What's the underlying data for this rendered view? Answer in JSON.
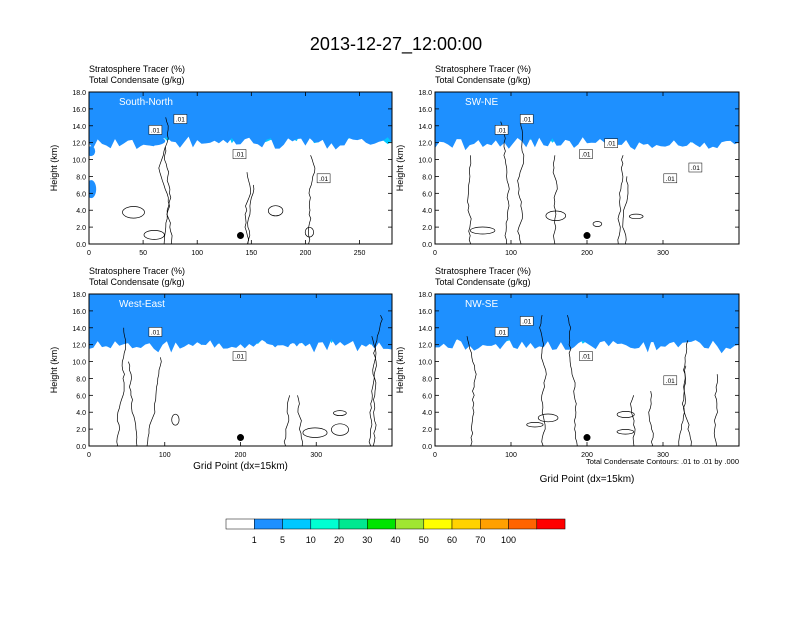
{
  "figure_title": "2013-12-27_12:00:00",
  "field_label": "Stratosphere Tracer",
  "field_units": "(%)",
  "contour_label": "Total Condensate",
  "contour_units": "(g/kg)",
  "contour_note": "Total Condensate Contours: .01 to .01 by .000",
  "colorbar": {
    "colors": [
      "#ffffff",
      "#1e90ff",
      "#00c8ff",
      "#00ffd2",
      "#00e890",
      "#00e400",
      "#a0e632",
      "#ffff00",
      "#ffd200",
      "#ffa000",
      "#ff6400",
      "#ff0000"
    ],
    "labels": [
      "1",
      "5",
      "10",
      "20",
      "30",
      "40",
      "50",
      "60",
      "70",
      "100"
    ]
  },
  "chart_data": [
    {
      "type": "contour-cross-section",
      "title": "South-North",
      "ylabel": "Height (km)",
      "xlabel": "",
      "ylim": [
        0,
        18
      ],
      "yticks": [
        "0.0",
        "2.0",
        "4.0",
        "6.0",
        "8.0",
        "10.0",
        "12.0",
        "14.0",
        "16.0",
        "18.0"
      ],
      "xlim": [
        0,
        280
      ],
      "xticks": [
        "0",
        "50",
        "100",
        "150",
        "200",
        "250"
      ],
      "contour_labels": [
        ".01",
        ".01",
        ".01",
        ".01"
      ],
      "marker_x": 140,
      "marker_y": 1.0
    },
    {
      "type": "contour-cross-section",
      "title": "SW-NE",
      "ylabel": "Height (km)",
      "xlabel": "",
      "ylim": [
        0,
        18
      ],
      "yticks": [
        "0.0",
        "2.0",
        "4.0",
        "6.0",
        "8.0",
        "10.0",
        "12.0",
        "14.0",
        "16.0",
        "18.0"
      ],
      "xlim": [
        0,
        400
      ],
      "xticks": [
        "0",
        "100",
        "200",
        "300"
      ],
      "contour_labels": [
        ".01",
        ".01",
        ".01",
        ".01",
        ".01",
        ".01"
      ],
      "marker_x": 200,
      "marker_y": 1.0
    },
    {
      "type": "contour-cross-section",
      "title": "West-East",
      "ylabel": "Height (km)",
      "xlabel": "Grid Point (dx=15km)",
      "ylim": [
        0,
        18
      ],
      "yticks": [
        "0.0",
        "2.0",
        "4.0",
        "6.0",
        "8.0",
        "10.0",
        "12.0",
        "14.0",
        "16.0",
        "18.0"
      ],
      "xlim": [
        0,
        400
      ],
      "xticks": [
        "0",
        "100",
        "200",
        "300"
      ],
      "contour_labels": [
        ".01",
        ".01"
      ],
      "marker_x": 200,
      "marker_y": 1.0
    },
    {
      "type": "contour-cross-section",
      "title": "NW-SE",
      "ylabel": "Height (km)",
      "xlabel": "Grid Point (dx=15km)",
      "ylim": [
        0,
        18
      ],
      "yticks": [
        "0.0",
        "2.0",
        "4.0",
        "6.0",
        "8.0",
        "10.0",
        "12.0",
        "14.0",
        "16.0",
        "18.0"
      ],
      "xlim": [
        0,
        400
      ],
      "xticks": [
        "0",
        "100",
        "200",
        "300"
      ],
      "contour_labels": [
        ".01",
        ".01",
        ".01",
        ".01"
      ],
      "marker_x": 200,
      "marker_y": 1.0
    }
  ]
}
